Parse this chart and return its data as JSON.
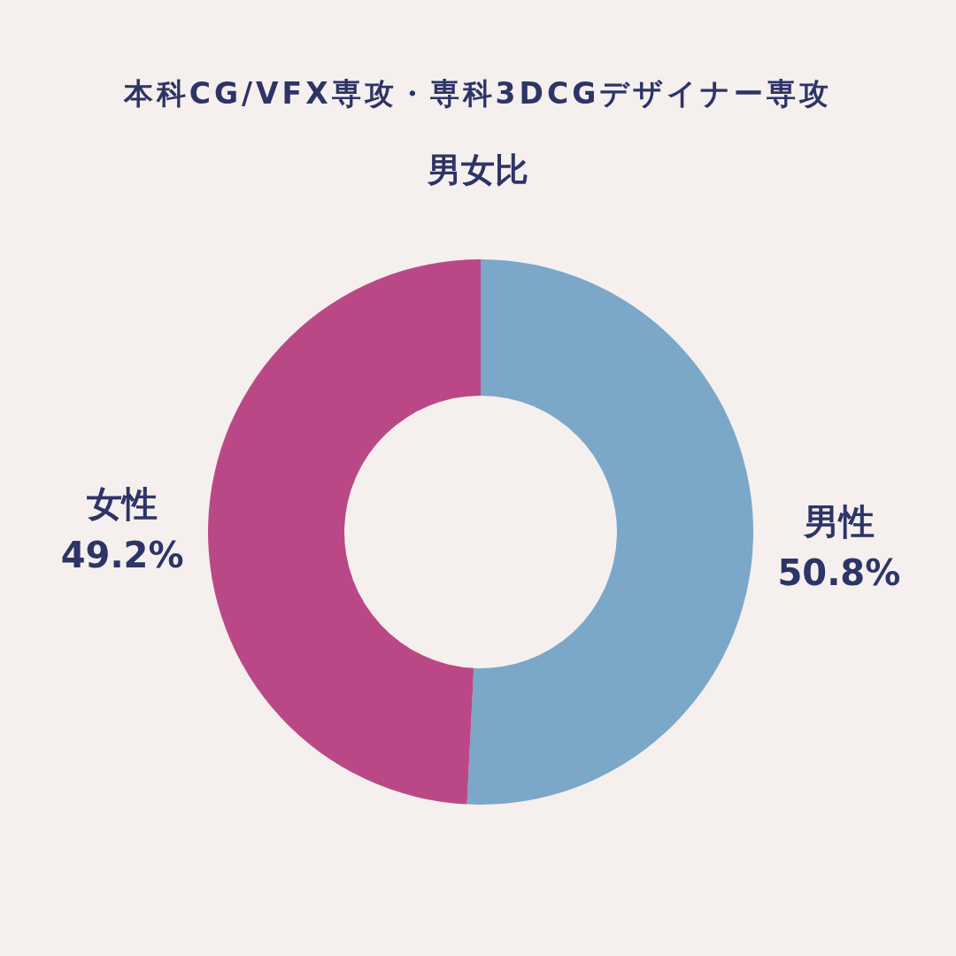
{
  "chart_data": {
    "type": "donut",
    "title": "本科CG/VFX専攻・専科3DCGデザイナー専攻",
    "subtitle": "男女比",
    "categories": [
      "男性",
      "女性"
    ],
    "values": [
      50.8,
      49.2
    ],
    "colors": [
      "#7ba7c8",
      "#bb4886"
    ],
    "value_labels": [
      "50.8%",
      "49.2%"
    ]
  }
}
